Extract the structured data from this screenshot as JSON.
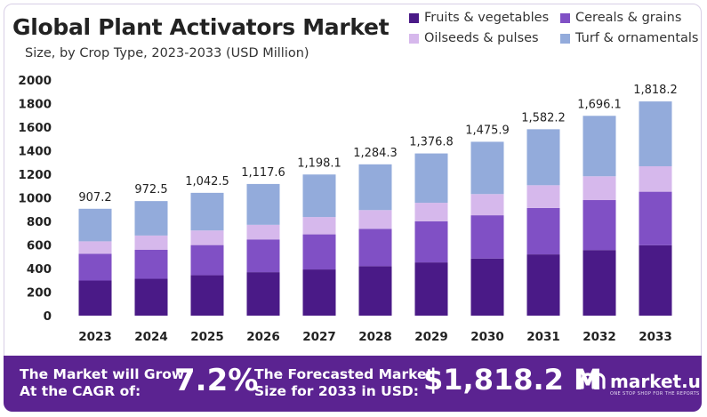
{
  "header": {
    "title": "Global Plant Activators Market",
    "subtitle": "Size, by Crop Type, 2023-2033 (USD Million)"
  },
  "legend": [
    {
      "label": "Fruits & vegetables",
      "color": "#4a1a87"
    },
    {
      "label": "Cereals & grains",
      "color": "#8050c5"
    },
    {
      "label": "Oilseeds & pulses",
      "color": "#d6b8ec"
    },
    {
      "label": "Turf & ornamentals",
      "color": "#93abdb"
    }
  ],
  "chart_data": {
    "type": "bar",
    "stacked": true,
    "categories": [
      "2023",
      "2024",
      "2025",
      "2026",
      "2027",
      "2028",
      "2029",
      "2030",
      "2031",
      "2032",
      "2033"
    ],
    "series": [
      {
        "name": "Fruits & vegetables",
        "color": "#4a1a87",
        "values": [
          298,
          313,
          343,
          369,
          392,
          420,
          452,
          485,
          520,
          557,
          597
        ]
      },
      {
        "name": "Cereals & grains",
        "color": "#8050c5",
        "values": [
          227,
          247,
          256,
          278,
          298,
          317,
          349,
          367,
          394,
          424,
          455
        ]
      },
      {
        "name": "Oilseeds & pulses",
        "color": "#d6b8ec",
        "values": [
          106,
          120,
          124,
          124,
          147,
          159,
          157,
          180,
          193,
          202,
          216
        ]
      },
      {
        "name": "Turf & ornamentals",
        "color": "#93abdb",
        "values": [
          276.2,
          292.5,
          319.5,
          346.6,
          361.1,
          388.3,
          418.8,
          443.9,
          475.2,
          513.1,
          550.2
        ]
      }
    ],
    "totals": [
      907.2,
      972.5,
      1042.5,
      1117.6,
      1198.1,
      1284.3,
      1376.8,
      1475.9,
      1582.2,
      1696.1,
      1818.2
    ],
    "total_labels": [
      "907.2",
      "972.5",
      "1,042.5",
      "1,117.6",
      "1,198.1",
      "1,284.3",
      "1,376.8",
      "1,475.9",
      "1,582.2",
      "1,696.1",
      "1,818.2"
    ],
    "yticks": [
      0,
      200,
      400,
      600,
      800,
      1000,
      1200,
      1400,
      1600,
      1800,
      2000
    ],
    "ylim": [
      0,
      2000
    ],
    "grid": false,
    "legend_position": "top-right"
  },
  "footer": {
    "cagr_line1": "The Market will Grow",
    "cagr_line2": "At the CAGR of:",
    "cagr_value": "7.2%",
    "forecast_line1": "The Forecasted Market",
    "forecast_line2": "Size for 2033 in USD:",
    "forecast_value": "$1,818.2 M",
    "brand_name": "market.us",
    "brand_tagline": "ONE STOP SHOP FOR THE REPORTS"
  }
}
